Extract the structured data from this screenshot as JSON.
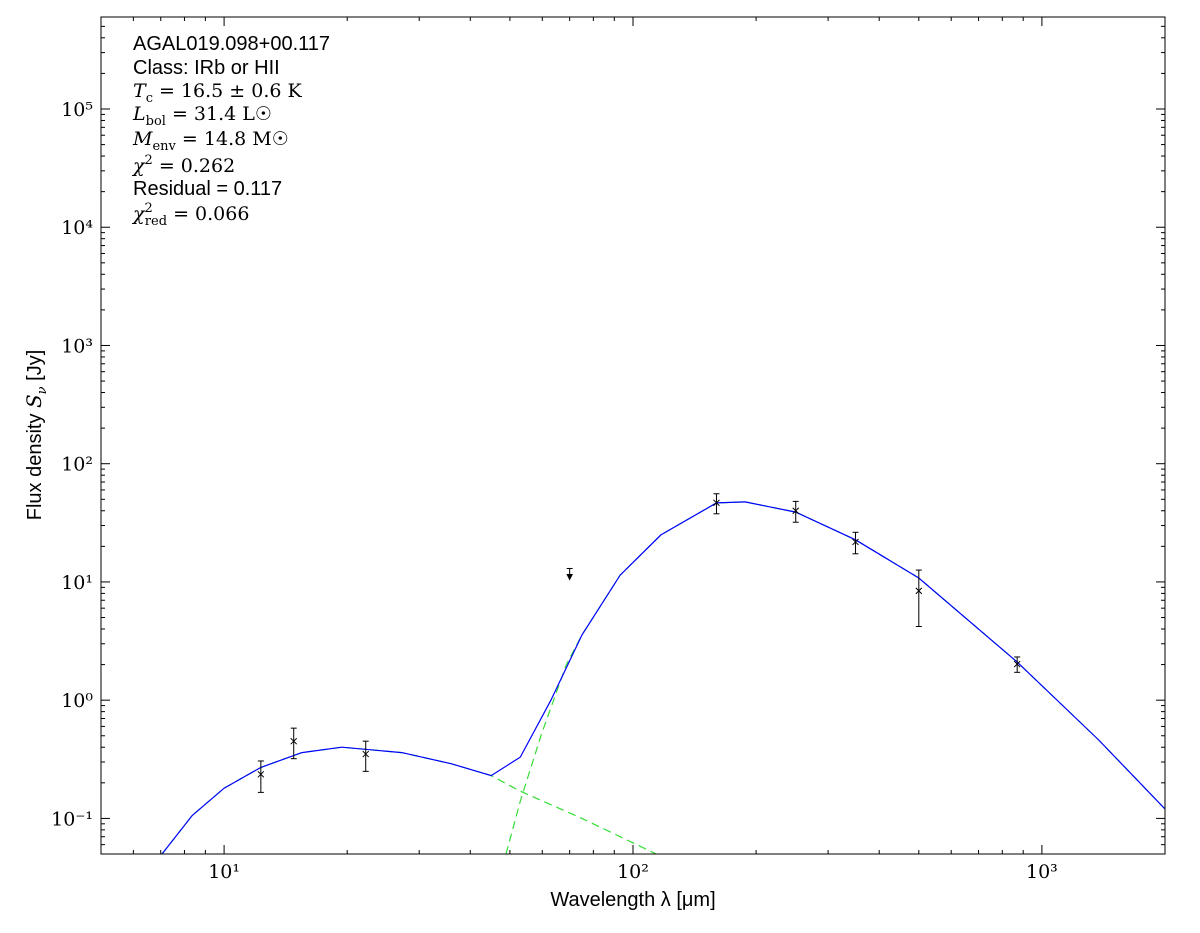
{
  "chart_data": {
    "type": "sed",
    "x_label": "Wavelength λ [μm]",
    "y_label": {
      "text": "Flux density ",
      "base": "S",
      "sub": "ν",
      "rest": " [Jy]"
    },
    "log_x": true,
    "log_y": true,
    "grid": false,
    "xlim": [
      5,
      2000
    ],
    "ylim": [
      0.05,
      600000
    ],
    "xticks": [
      {
        "value": 10,
        "label": "10¹"
      },
      {
        "value": 100,
        "label": "10²"
      },
      {
        "value": 1000,
        "label": "10³"
      }
    ],
    "yticks": [
      {
        "value": 0.1,
        "label": "10⁻¹"
      },
      {
        "value": 1,
        "label": "10⁰"
      },
      {
        "value": 10,
        "label": "10¹"
      },
      {
        "value": 100,
        "label": "10²"
      },
      {
        "value": 1000,
        "label": "10³"
      },
      {
        "value": 10000,
        "label": "10⁴"
      },
      {
        "value": 100000,
        "label": "10⁵"
      }
    ],
    "annotations": [
      {
        "text": "AGAL019.098+00.117"
      },
      {
        "text": "Class: IRb or HII"
      },
      {
        "base": "T",
        "sub": "c",
        "rest": " = 16.5 ± 0.6 K"
      },
      {
        "base": "L",
        "sub": "bol",
        "rest": " = 31.4 L☉"
      },
      {
        "base": "M",
        "sub": "env",
        "rest": " = 14.8 M☉"
      },
      {
        "base": "χ",
        "sup": "2",
        "rest": " = 0.262"
      },
      {
        "text": "Residual = 0.117"
      },
      {
        "base": "χ",
        "sup": "2",
        "sub": "red",
        "rest": " = 0.066"
      }
    ],
    "points": {
      "color": "#000000",
      "x": [
        12.3,
        14.8,
        22.2,
        160,
        250,
        350,
        500,
        870
      ],
      "y": [
        0.236,
        0.45,
        0.35,
        46.7,
        40,
        21.8,
        8.4,
        2.02
      ],
      "yerr": [
        0.07,
        0.13,
        0.1,
        9,
        8,
        4.5,
        4.2,
        0.3
      ]
    },
    "upper_limits": {
      "color": "#000000",
      "x": [
        70
      ],
      "y": [
        13
      ]
    },
    "curves": [
      {
        "color": "#33dd33",
        "dash": true,
        "x": [
          7.05,
          8.36,
          10,
          12.3,
          15.5,
          19.4,
          27.2,
          35.9,
          45,
          53,
          75,
          114
        ],
        "y": [
          0.05,
          0.106,
          0.18,
          0.27,
          0.36,
          0.4,
          0.36,
          0.29,
          0.23,
          0.17,
          0.1,
          0.05
        ]
      },
      {
        "color": "#33dd33",
        "dash": true,
        "x": [
          48.9,
          53,
          59.6,
          68.6,
          75,
          93,
          117,
          160,
          188,
          250,
          350,
          500,
          870,
          1377,
          2000
        ],
        "y": [
          0.05,
          0.14,
          0.505,
          1.98,
          3.55,
          11.4,
          25,
          46.6,
          47.5,
          39,
          22.7,
          10.8,
          2.1,
          0.46,
          0.12
        ]
      },
      {
        "color": "#0000ff",
        "dash": false,
        "x": [
          7.05,
          8.36,
          10,
          12.3,
          15.5,
          19.4,
          27.2,
          35.9,
          45,
          53,
          63,
          75,
          93,
          117,
          160,
          188,
          250,
          350,
          500,
          870,
          1377,
          2000
        ],
        "y": [
          0.05,
          0.106,
          0.18,
          0.27,
          0.36,
          0.4,
          0.36,
          0.29,
          0.23,
          0.33,
          1.0,
          3.55,
          11.4,
          25,
          46.6,
          47.5,
          39,
          22.7,
          10.8,
          2.1,
          0.46,
          0.12
        ]
      }
    ]
  }
}
